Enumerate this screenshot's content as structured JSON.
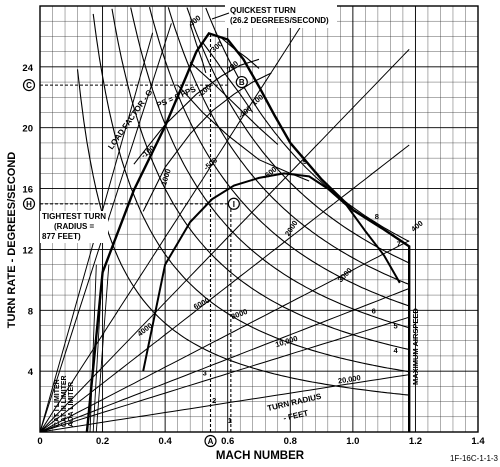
{
  "figure_id": "1F-16C-1-1-3",
  "chart_data": {
    "type": "line",
    "xlabel": "MACH NUMBER",
    "ylabel": "TURN RATE - DEGREES/SECOND",
    "xlim": [
      0,
      1.4
    ],
    "ylim": [
      0,
      28
    ],
    "x_ticks": [
      "0",
      "0.2",
      "0.4",
      "0.6",
      "0.8",
      "1.0",
      "1.2",
      "1.4"
    ],
    "y_ticks": [
      "4",
      "8",
      "12",
      "16",
      "20",
      "24"
    ],
    "grid": true,
    "callouts": {
      "quickest_turn": [
        "QUICKEST TURN",
        "(26.2 DEGREES/SECOND)"
      ],
      "tightest_turn": [
        "TIGHTEST TURN",
        "(RADIUS =",
        "877 FEET)"
      ],
      "load_factor": "LOAD FACTOR - G",
      "ps_zero": "PS = 0 FPS",
      "turn_radius": [
        "TURN RADIUS",
        "- FEET"
      ],
      "maximum_airspeed": "MAXIMUM AIRSPEED",
      "limiters": [
        "CAT I LIMITER",
        "CAT III LIMITER",
        "AOA LIMITER"
      ]
    },
    "markers": [
      {
        "label": "A",
        "x": 0.545
      },
      {
        "label": "B",
        "y": 22.8
      },
      {
        "label": "C",
        "y": 22.8
      },
      {
        "label": "H",
        "y": 15.0
      },
      {
        "label": "I",
        "x": 0.61,
        "y": 15.0
      }
    ],
    "boundary": {
      "name": "aircraft limit envelope",
      "x": [
        0.15,
        0.2,
        0.3,
        0.4,
        0.47,
        0.5,
        0.54,
        0.6,
        0.65,
        0.7,
        0.75,
        0.8,
        0.9,
        1.0,
        1.1,
        1.18,
        1.18
      ],
      "y": [
        0,
        10.5,
        15.9,
        20.1,
        23.5,
        25.0,
        26.2,
        25.8,
        24.5,
        22.7,
        20.8,
        19.0,
        16.6,
        14.6,
        13.3,
        12.2,
        0
      ]
    },
    "ps_zero_curve": {
      "x": [
        0.33,
        0.4,
        0.48,
        0.55,
        0.62,
        0.7,
        0.78,
        0.86,
        0.92,
        0.98,
        1.04,
        1.1,
        1.15
      ],
      "y": [
        4.0,
        11.0,
        13.8,
        15.3,
        16.2,
        16.7,
        17.0,
        16.8,
        16.0,
        14.9,
        13.2,
        11.6,
        9.8
      ]
    },
    "load_factor_lines": [
      {
        "label": "1",
        "g": 1
      },
      {
        "label": "2",
        "g": 2
      },
      {
        "label": "3",
        "g": 3
      },
      {
        "label": "4",
        "g": 4
      },
      {
        "label": "5",
        "g": 5
      },
      {
        "label": "6",
        "g": 6
      },
      {
        "label": "7",
        "g": 7
      },
      {
        "label": "8",
        "g": 8
      },
      {
        "label": "9",
        "g": 9
      }
    ],
    "turn_radius_lines": [
      {
        "label": "877",
        "radius_ft": 877
      },
      {
        "label": "1000",
        "radius_ft": 1000
      },
      {
        "label": "2000",
        "radius_ft": 2000
      },
      {
        "label": "3000",
        "radius_ft": 3000
      },
      {
        "label": "4000",
        "radius_ft": 4000
      },
      {
        "label": "6000",
        "radius_ft": 6000
      },
      {
        "label": "8000",
        "radius_ft": 8000
      },
      {
        "label": "10,000",
        "radius_ft": 10000
      },
      {
        "label": "20,000",
        "radius_ft": 20000
      }
    ],
    "ps_lines": [
      {
        "label": "400",
        "x": [
          0.48,
          0.5,
          0.52,
          0.53
        ],
        "y": [
          26.8,
          25.5,
          24.3,
          23.6
        ]
      },
      {
        "label": "300",
        "x": [
          0.52,
          0.56,
          0.6,
          0.64,
          0.68
        ],
        "y": [
          25.6,
          24.5,
          23.3,
          22.2,
          21.0
        ]
      },
      {
        "label": "200",
        "x": [
          0.48,
          0.55,
          0.62,
          0.7,
          0.76
        ],
        "y": [
          24.3,
          23.0,
          21.6,
          20.0,
          18.9
        ]
      },
      {
        "label": "100",
        "x": [
          0.44,
          0.52,
          0.6,
          0.7,
          0.8,
          0.86
        ],
        "y": [
          22.8,
          21.0,
          19.5,
          17.9,
          17.0,
          16.5
        ]
      },
      {
        "label": "-100",
        "x": [
          0.33,
          0.4,
          0.48,
          0.55,
          0.62,
          0.68,
          0.74
        ],
        "y": [
          14.5,
          17.4,
          19.6,
          21.1,
          22.2,
          23.0,
          23.6
        ]
      },
      {
        "label": "-200",
        "x": [
          0.3,
          0.4,
          0.5,
          0.58,
          0.64,
          0.7
        ],
        "y": [
          17.6,
          20.2,
          22.2,
          23.4,
          24.1,
          24.5
        ]
      },
      {
        "label": "-400",
        "x": [
          0.58,
          0.62,
          0.66,
          0.7
        ],
        "y": [
          25.9,
          25.2,
          24.6,
          23.9
        ]
      }
    ],
    "ps_labels": [
      {
        "text": "400",
        "x": 0.5,
        "y": 26.9
      },
      {
        "text": "300",
        "x": 0.57,
        "y": 25.2
      },
      {
        "text": "200",
        "x": 0.62,
        "y": 23.9
      },
      {
        "text": "100",
        "x": 0.7,
        "y": 21.7
      },
      {
        "text": "-100",
        "x": 0.35,
        "y": 18.3
      },
      {
        "text": "-200",
        "x": 0.53,
        "y": 22.3
      },
      {
        "text": "-400",
        "x": 0.66,
        "y": 20.9
      },
      {
        "text": "-500",
        "x": 0.55,
        "y": 17.5
      },
      {
        "text": "-600",
        "x": 0.74,
        "y": 16.9
      },
      {
        "text": "400",
        "x": 1.21,
        "y": 13.4
      }
    ]
  }
}
